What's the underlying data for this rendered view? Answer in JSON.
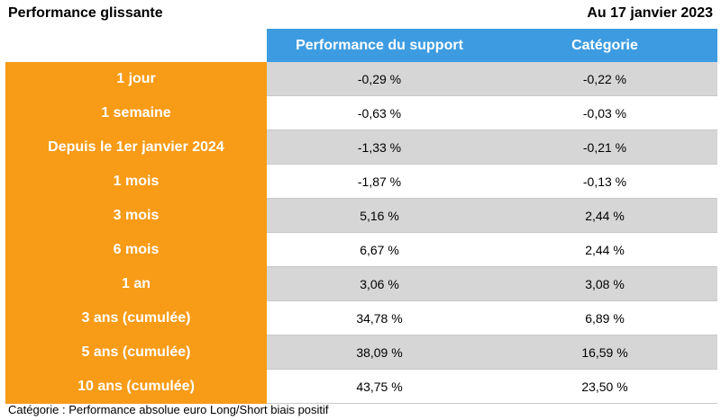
{
  "header": {
    "title": "Performance glissante",
    "date": "Au 17 janvier 2023"
  },
  "table": {
    "columns": [
      "Performance du support",
      "Catégorie"
    ],
    "rows": [
      {
        "label": "1 jour",
        "support": "-0,29 %",
        "categorie": "-0,22 %"
      },
      {
        "label": "1 semaine",
        "support": "-0,63 %",
        "categorie": "-0,03 %"
      },
      {
        "label": "Depuis le 1er janvier 2024",
        "support": "-1,33 %",
        "categorie": "-0,21 %"
      },
      {
        "label": "1 mois",
        "support": "-1,87 %",
        "categorie": "-0,13 %"
      },
      {
        "label": "3 mois",
        "support": "5,16 %",
        "categorie": "2,44 %"
      },
      {
        "label": "6 mois",
        "support": "6,67 %",
        "categorie": "2,44 %"
      },
      {
        "label": "1 an",
        "support": "3,06 %",
        "categorie": "3,08 %"
      },
      {
        "label": "3 ans (cumulée)",
        "support": "34,78 %",
        "categorie": "6,89 %"
      },
      {
        "label": "5 ans (cumulée)",
        "support": "38,09 %",
        "categorie": "16,59 %"
      },
      {
        "label": "10 ans (cumulée)",
        "support": "43,75 %",
        "categorie": "23,50 %"
      }
    ]
  },
  "footnote": "Catégorie : Performance absolue euro Long/Short biais positif",
  "colors": {
    "header_blue": "#3d9ce1",
    "label_orange": "#f89b16",
    "row_gray": "#d6d6d6",
    "row_white": "#ffffff"
  }
}
